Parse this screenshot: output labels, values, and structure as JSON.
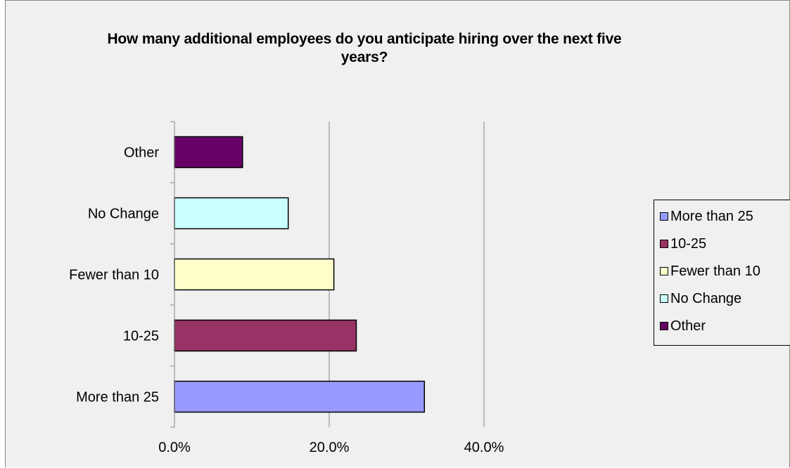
{
  "chart_data": {
    "type": "bar",
    "orientation": "horizontal",
    "title": "How many additional employees do you anticipate hiring over the next five years?",
    "categories": [
      "More than 25",
      "10-25",
      "Fewer than 10",
      "No Change",
      "Other"
    ],
    "values": [
      0.323,
      0.235,
      0.206,
      0.147,
      0.088
    ],
    "colors": [
      "#9999ff",
      "#993366",
      "#ffffcc",
      "#ccffff",
      "#660066"
    ],
    "xlim": [
      0,
      0.4
    ],
    "x_ticks": [
      0,
      0.2,
      0.4
    ],
    "x_tick_labels": [
      "0.0%",
      "20.0%",
      "40.0%"
    ],
    "grid": true,
    "legend_position": "right",
    "legend": [
      "More than 25",
      "10-25",
      "Fewer than 10",
      "No Change",
      "Other"
    ]
  }
}
